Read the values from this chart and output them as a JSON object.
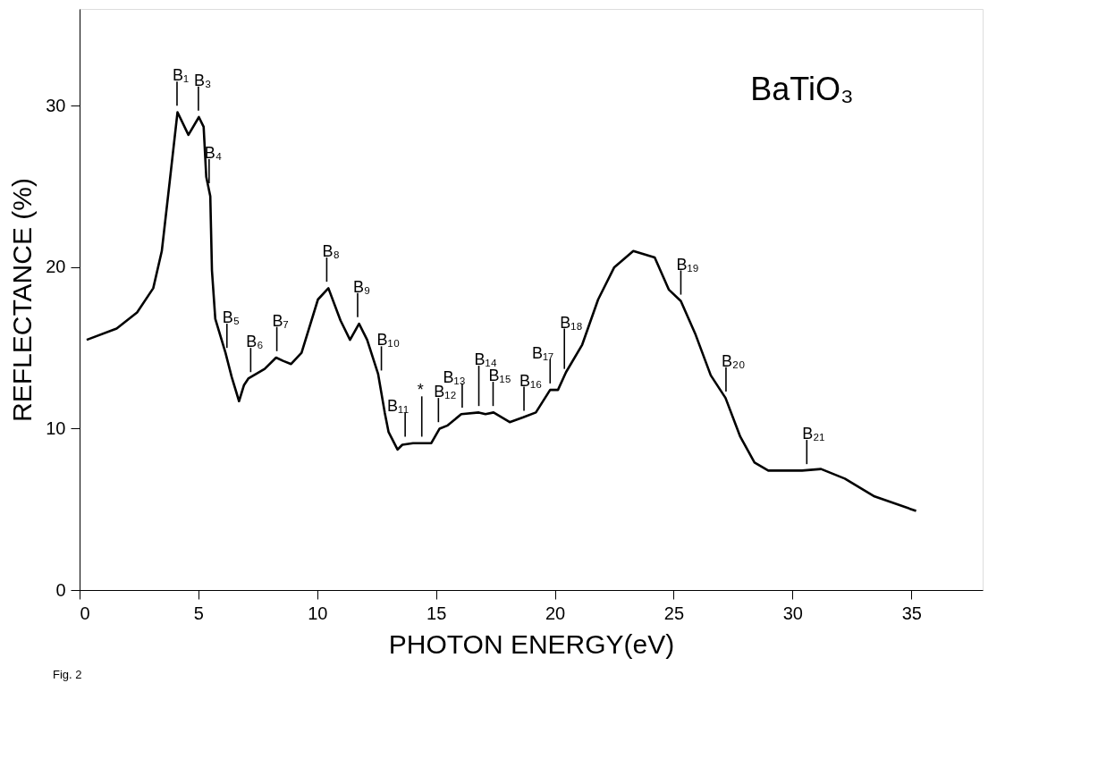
{
  "chart_data": {
    "type": "line",
    "xlabel": "PHOTON ENERGY(eV)",
    "ylabel": "REFLECTANCE (%)",
    "xlim": [
      0,
      38
    ],
    "ylim": [
      0,
      36
    ],
    "xticks": [
      0,
      5,
      10,
      15,
      20,
      25,
      30,
      35
    ],
    "yticks": [
      0,
      10,
      20,
      30
    ],
    "grid": false,
    "legend": false,
    "marker": "none",
    "line_style": "solid",
    "series": [
      {
        "color": "#000000",
        "x": [
          0.3,
          1.56,
          2.42,
          3.1,
          3.46,
          3.8,
          4.12,
          4.58,
          5.02,
          5.22,
          5.33,
          5.5,
          5.57,
          5.71,
          6.14,
          6.4,
          6.71,
          6.92,
          7.1,
          7.79,
          8.27,
          8.56,
          8.9,
          9.34,
          10.03,
          10.47,
          10.98,
          11.38,
          11.76,
          12.1,
          12.56,
          12.84,
          13.0,
          13.24,
          13.38,
          13.58,
          14.03,
          14.8,
          15.15,
          15.49,
          16.06,
          16.8,
          17.08,
          17.42,
          18.1,
          18.67,
          19.2,
          19.8,
          20.13,
          20.47,
          21.15,
          21.82,
          22.5,
          23.3,
          24.2,
          24.8,
          25.3,
          25.9,
          26.56,
          27.18,
          27.8,
          28.4,
          28.98,
          30.4,
          31.2,
          32.2,
          33.45,
          35.2
        ],
        "values": [
          15.5,
          16.2,
          17.2,
          18.7,
          21.0,
          25.4,
          29.6,
          28.2,
          29.3,
          28.7,
          25.6,
          24.4,
          19.8,
          16.8,
          14.7,
          13.2,
          11.7,
          12.7,
          13.1,
          13.7,
          14.4,
          14.2,
          14.0,
          14.7,
          18.0,
          18.7,
          16.7,
          15.5,
          16.5,
          15.5,
          13.4,
          11.0,
          9.8,
          9.1,
          8.7,
          9.0,
          9.1,
          9.1,
          10.0,
          10.2,
          10.9,
          11.0,
          10.9,
          11.0,
          10.4,
          10.7,
          11.0,
          12.4,
          12.4,
          13.5,
          15.2,
          18.0,
          20.0,
          21.0,
          20.6,
          18.6,
          17.9,
          15.9,
          13.3,
          11.9,
          9.5,
          7.9,
          7.4,
          7.4,
          7.5,
          6.9,
          5.8,
          4.9
        ]
      }
    ],
    "annotations": [
      {
        "text": "B₁",
        "x": 4.1,
        "y": 29.6
      },
      {
        "text": "B₃",
        "x": 5.0,
        "y": 29.3
      },
      {
        "text": "B₄",
        "x": 5.45,
        "y": 24.8
      },
      {
        "text": "B₅",
        "x": 6.2,
        "y": 14.6
      },
      {
        "text": "B₆",
        "x": 7.2,
        "y": 13.1
      },
      {
        "text": "B₇",
        "x": 8.3,
        "y": 14.4
      },
      {
        "text": "B₈",
        "x": 10.4,
        "y": 18.7
      },
      {
        "text": "B₉",
        "x": 11.7,
        "y": 16.5
      },
      {
        "text": "B₁₀",
        "x": 12.7,
        "y": 13.2
      },
      {
        "text": "B₁₁",
        "x": 13.7,
        "y": 9.1
      },
      {
        "text": "*",
        "x": 14.4,
        "y": 9.1
      },
      {
        "text": "B₁₂",
        "x": 15.1,
        "y": 10.0
      },
      {
        "text": "B₁₃",
        "x": 16.1,
        "y": 10.9
      },
      {
        "text": "B₁₄",
        "x": 16.8,
        "y": 11.0
      },
      {
        "text": "B₁₅",
        "x": 17.4,
        "y": 11.0
      },
      {
        "text": "B₁₆",
        "x": 18.7,
        "y": 10.7
      },
      {
        "text": "B₁₇",
        "x": 19.8,
        "y": 12.4
      },
      {
        "text": "B₁₈",
        "x": 20.4,
        "y": 13.3
      },
      {
        "text": "B₁₉",
        "x": 25.3,
        "y": 17.9
      },
      {
        "text": "B₂₀",
        "x": 27.2,
        "y": 11.9
      },
      {
        "text": "B₂₁",
        "x": 30.6,
        "y": 7.4
      },
      "BaTiO₃",
      "Fig. 2"
    ]
  }
}
